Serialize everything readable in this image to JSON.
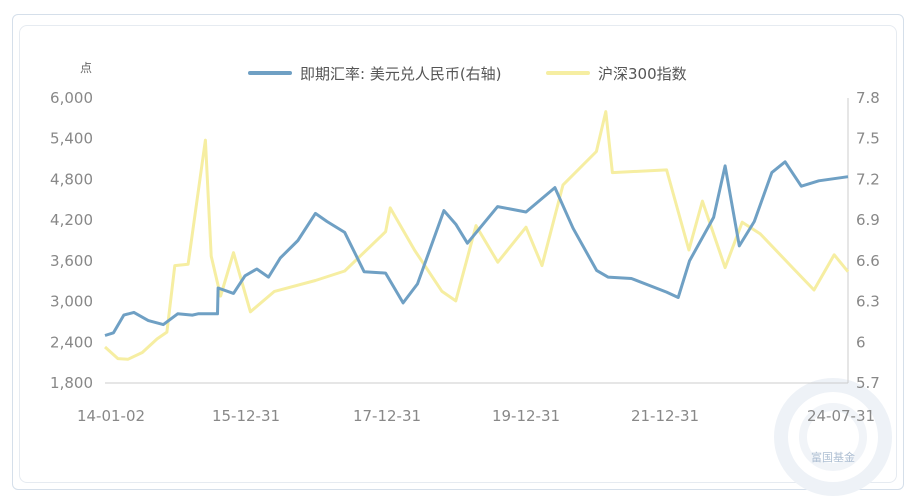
{
  "chart_data": {
    "type": "line",
    "left_unit": "点",
    "x_ticks": [
      "14-01-02",
      "15-12-31",
      "17-12-31",
      "19-12-31",
      "21-12-31",
      "24-07-31"
    ],
    "x_range": [
      "2014-01-02",
      "2024-07-31"
    ],
    "left_axis": {
      "min": 1800,
      "max": 6000,
      "ticks": [
        "1,800",
        "2,400",
        "3,000",
        "3,600",
        "4,200",
        "4,800",
        "5,400",
        "6,000"
      ]
    },
    "right_axis": {
      "min": 5.7,
      "max": 7.8,
      "ticks": [
        "5.7",
        "6",
        "6.3",
        "6.6",
        "6.9",
        "7.2",
        "7.5",
        "7.8"
      ]
    },
    "series": [
      {
        "name": "即期汇率: 美元兑人民币(右轴)",
        "axis": "right",
        "color": "#6fa0c4",
        "points": [
          [
            "2014-01-02",
            6.05
          ],
          [
            "2014-02-15",
            6.07
          ],
          [
            "2014-04-10",
            6.2
          ],
          [
            "2014-06-01",
            6.22
          ],
          [
            "2014-08-15",
            6.16
          ],
          [
            "2014-11-01",
            6.13
          ],
          [
            "2015-01-15",
            6.21
          ],
          [
            "2015-04-01",
            6.2
          ],
          [
            "2015-05-01",
            6.21
          ],
          [
            "2015-08-10",
            6.21
          ],
          [
            "2015-08-13",
            6.4
          ],
          [
            "2015-11-01",
            6.36
          ],
          [
            "2015-12-31",
            6.49
          ],
          [
            "2016-03-01",
            6.54
          ],
          [
            "2016-05-01",
            6.48
          ],
          [
            "2016-07-01",
            6.62
          ],
          [
            "2016-10-01",
            6.75
          ],
          [
            "2016-12-31",
            6.95
          ],
          [
            "2017-03-01",
            6.89
          ],
          [
            "2017-06-01",
            6.81
          ],
          [
            "2017-09-10",
            6.52
          ],
          [
            "2017-12-31",
            6.51
          ],
          [
            "2018-04-01",
            6.29
          ],
          [
            "2018-06-15",
            6.43
          ],
          [
            "2018-10-30",
            6.97
          ],
          [
            "2018-12-31",
            6.87
          ],
          [
            "2019-03-01",
            6.73
          ],
          [
            "2019-08-05",
            7.0
          ],
          [
            "2019-12-31",
            6.96
          ],
          [
            "2020-05-29",
            7.14
          ],
          [
            "2020-09-01",
            6.84
          ],
          [
            "2021-01-01",
            6.53
          ],
          [
            "2021-03-01",
            6.48
          ],
          [
            "2021-07-01",
            6.47
          ],
          [
            "2021-12-31",
            6.37
          ],
          [
            "2022-03-01",
            6.33
          ],
          [
            "2022-04-29",
            6.6
          ],
          [
            "2022-09-01",
            6.92
          ],
          [
            "2022-10-31",
            7.3
          ],
          [
            "2023-01-13",
            6.71
          ],
          [
            "2023-04-01",
            6.89
          ],
          [
            "2023-07-01",
            7.25
          ],
          [
            "2023-09-08",
            7.33
          ],
          [
            "2023-12-01",
            7.15
          ],
          [
            "2024-03-01",
            7.19
          ],
          [
            "2024-07-31",
            7.22
          ]
        ]
      },
      {
        "name": "沪深300指数",
        "axis": "left",
        "color": "#f6eea2",
        "points": [
          [
            "2014-01-02",
            2330
          ],
          [
            "2014-03-10",
            2160
          ],
          [
            "2014-05-01",
            2150
          ],
          [
            "2014-07-15",
            2250
          ],
          [
            "2014-09-30",
            2450
          ],
          [
            "2014-11-20",
            2550
          ],
          [
            "2014-12-31",
            3530
          ],
          [
            "2015-03-10",
            3550
          ],
          [
            "2015-06-08",
            5380
          ],
          [
            "2015-07-08",
            3670
          ],
          [
            "2015-08-26",
            3080
          ],
          [
            "2015-11-01",
            3720
          ],
          [
            "2016-01-28",
            2850
          ],
          [
            "2016-06-01",
            3150
          ],
          [
            "2016-12-31",
            3310
          ],
          [
            "2017-06-01",
            3450
          ],
          [
            "2017-12-31",
            4030
          ],
          [
            "2018-01-24",
            4380
          ],
          [
            "2018-06-01",
            3750
          ],
          [
            "2018-10-20",
            3150
          ],
          [
            "2018-12-31",
            3010
          ],
          [
            "2019-04-15",
            4120
          ],
          [
            "2019-08-06",
            3580
          ],
          [
            "2019-12-31",
            4096
          ],
          [
            "2020-03-23",
            3530
          ],
          [
            "2020-07-10",
            4720
          ],
          [
            "2020-12-31",
            5211
          ],
          [
            "2021-02-18",
            5800
          ],
          [
            "2021-03-24",
            4900
          ],
          [
            "2021-12-31",
            4940
          ],
          [
            "2022-04-26",
            3760
          ],
          [
            "2022-07-05",
            4480
          ],
          [
            "2022-10-31",
            3500
          ],
          [
            "2023-01-28",
            4170
          ],
          [
            "2023-05-01",
            4000
          ],
          [
            "2023-10-23",
            3480
          ],
          [
            "2024-02-05",
            3170
          ],
          [
            "2024-05-20",
            3690
          ],
          [
            "2024-07-31",
            3440
          ]
        ]
      }
    ],
    "legend_position": "top",
    "grid": false
  },
  "watermark": {
    "text": "富国基金"
  }
}
